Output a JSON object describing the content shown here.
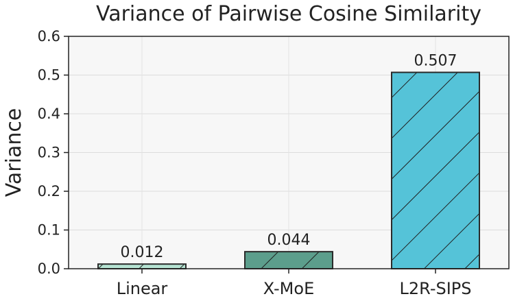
{
  "chart_data": {
    "type": "bar",
    "title": "Variance of Pairwise Cosine Similarity",
    "xlabel": "",
    "ylabel": "Variance",
    "ylim": [
      0,
      0.6
    ],
    "yticks": [
      "0.0",
      "0.1",
      "0.2",
      "0.3",
      "0.4",
      "0.5",
      "0.6"
    ],
    "yticks_values": [
      0,
      0.1,
      0.2,
      0.3,
      0.4,
      0.5,
      0.6
    ],
    "categories": [
      "Linear",
      "X-MoE",
      "L2R-SIPS"
    ],
    "values": [
      0.012,
      0.044,
      0.507
    ],
    "value_labels": [
      "0.012",
      "0.044",
      "0.507"
    ],
    "colors": [
      "#b5e3d2",
      "#5c9e8c",
      "#55c3d8"
    ],
    "grid": true,
    "hatch": "diagonal"
  }
}
